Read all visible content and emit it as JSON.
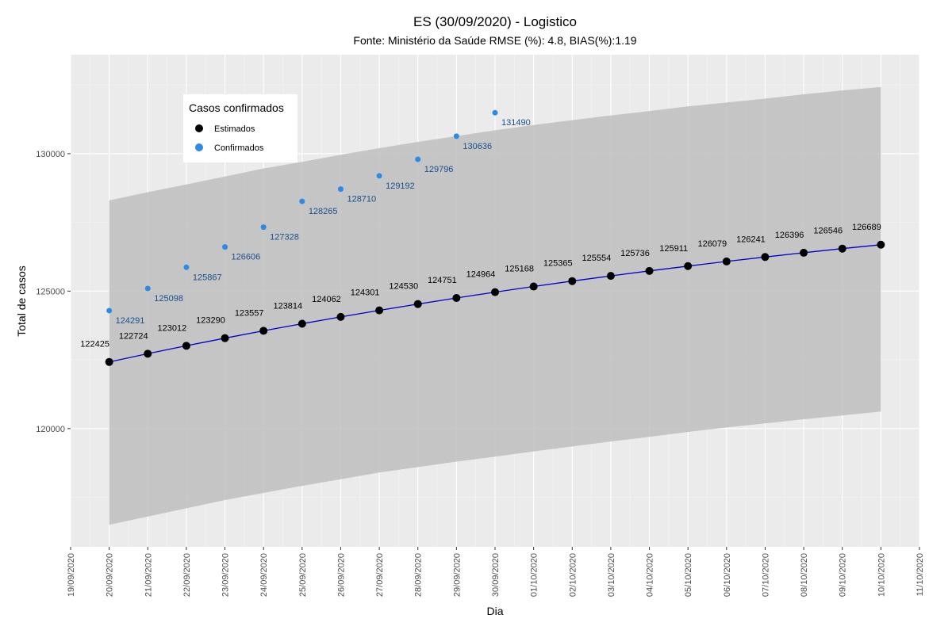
{
  "chart_data": {
    "type": "scatter",
    "title": "ES (30/09/2020) - Logistico",
    "subtitle": "Fonte: Ministério da Saúde RMSE (%): 4.8, BIAS(%):1.19",
    "xlabel": "Dia",
    "ylabel": "Total de casos",
    "x_ticks": [
      "19/09/2020",
      "20/09/2020",
      "21/09/2020",
      "22/09/2020",
      "23/09/2020",
      "24/09/2020",
      "25/09/2020",
      "26/09/2020",
      "27/09/2020",
      "28/09/2020",
      "29/09/2020",
      "30/09/2020",
      "01/10/2020",
      "02/10/2020",
      "03/10/2020",
      "04/10/2020",
      "05/10/2020",
      "06/10/2020",
      "07/10/2020",
      "08/10/2020",
      "09/10/2020",
      "10/10/2020",
      "11/10/2020"
    ],
    "y_ticks": [
      120000,
      125000,
      130000
    ],
    "ylim": [
      115700,
      133600
    ],
    "grid": true,
    "legend": {
      "title": "Casos confirmados",
      "position": "top-left",
      "items": [
        {
          "label": "Estimados",
          "color": "#000000"
        },
        {
          "label": "Confirmados",
          "color": "#2e8ae6"
        }
      ]
    },
    "series": [
      {
        "name": "Estimados",
        "color": "#000000",
        "line_color": "#0000cc",
        "x": [
          "20/09/2020",
          "21/09/2020",
          "22/09/2020",
          "23/09/2020",
          "24/09/2020",
          "25/09/2020",
          "26/09/2020",
          "27/09/2020",
          "28/09/2020",
          "29/09/2020",
          "30/09/2020",
          "01/10/2020",
          "02/10/2020",
          "03/10/2020",
          "04/10/2020",
          "05/10/2020",
          "06/10/2020",
          "07/10/2020",
          "08/10/2020",
          "09/10/2020",
          "10/10/2020"
        ],
        "values": [
          122425,
          122724,
          123012,
          123290,
          123557,
          123814,
          124062,
          124301,
          124530,
          124751,
          124964,
          125168,
          125365,
          125554,
          125736,
          125911,
          126079,
          126241,
          126396,
          126546,
          126689
        ]
      },
      {
        "name": "Confirmados",
        "color": "#2e8ae6",
        "x": [
          "20/09/2020",
          "21/09/2020",
          "22/09/2020",
          "23/09/2020",
          "24/09/2020",
          "25/09/2020",
          "26/09/2020",
          "27/09/2020",
          "28/09/2020",
          "29/09/2020",
          "30/09/2020"
        ],
        "values": [
          124291,
          125098,
          125867,
          126606,
          127328,
          128265,
          128710,
          129192,
          129796,
          130636,
          131490
        ]
      }
    ],
    "interval": {
      "x": [
        "20/09/2020",
        "21/09/2020",
        "22/09/2020",
        "23/09/2020",
        "24/09/2020",
        "25/09/2020",
        "26/09/2020",
        "27/09/2020",
        "28/09/2020",
        "29/09/2020",
        "30/09/2020",
        "01/10/2020",
        "02/10/2020",
        "03/10/2020",
        "04/10/2020",
        "05/10/2020",
        "06/10/2020",
        "07/10/2020",
        "08/10/2020",
        "09/10/2020",
        "10/10/2020"
      ],
      "upper": [
        128300,
        128600,
        128880,
        129170,
        129460,
        129700,
        129960,
        130200,
        130430,
        130640,
        130850,
        131040,
        131220,
        131390,
        131550,
        131720,
        131860,
        132000,
        132160,
        132300,
        132420
      ],
      "lower": [
        116500,
        116800,
        117100,
        117400,
        117660,
        117920,
        118160,
        118400,
        118600,
        118800,
        118980,
        119170,
        119350,
        119530,
        119700,
        119880,
        120040,
        120190,
        120340,
        120480,
        120620
      ],
      "color": "#bebebe"
    }
  }
}
